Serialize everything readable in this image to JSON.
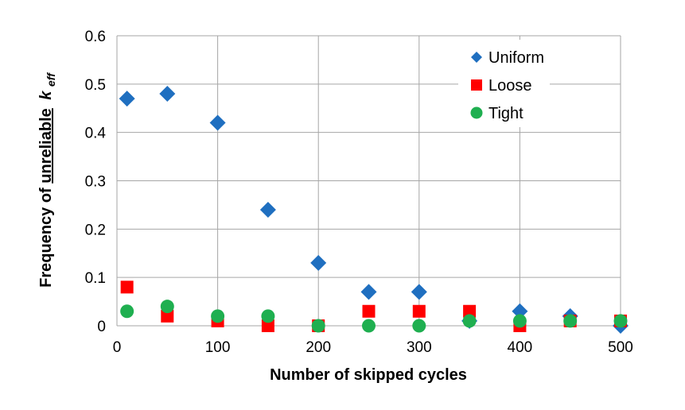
{
  "chart_data": {
    "type": "scatter",
    "xlabel": "Number of skipped cycles",
    "ylabel": {
      "prefix": "Frequency of ",
      "emphasis": "unreliable",
      "symbol": "k",
      "subscript": "eff"
    },
    "xlim": [
      0,
      500
    ],
    "ylim": [
      0,
      0.6
    ],
    "xticks": [
      "0",
      "100",
      "200",
      "300",
      "400",
      "500"
    ],
    "yticks": [
      "0",
      "0.1",
      "0.2",
      "0.3",
      "0.4",
      "0.5",
      "0.6"
    ],
    "grid": true,
    "legend_position": "top-right",
    "series": [
      {
        "name": "Uniform",
        "marker": "diamond",
        "color": "#1F6FC0",
        "x": [
          10,
          50,
          100,
          150,
          200,
          250,
          300,
          350,
          400,
          450,
          500
        ],
        "y": [
          0.47,
          0.48,
          0.42,
          0.24,
          0.13,
          0.07,
          0.07,
          0.01,
          0.03,
          0.02,
          0.0
        ]
      },
      {
        "name": "Loose",
        "marker": "square",
        "color": "#FF0000",
        "x": [
          10,
          50,
          100,
          150,
          200,
          250,
          300,
          350,
          400,
          450,
          500
        ],
        "y": [
          0.08,
          0.02,
          0.01,
          0.0,
          0.0,
          0.03,
          0.03,
          0.03,
          0.0,
          0.01,
          0.01
        ]
      },
      {
        "name": "Tight",
        "marker": "circle",
        "color": "#1FAF50",
        "x": [
          10,
          50,
          100,
          150,
          200,
          250,
          300,
          350,
          400,
          450,
          500
        ],
        "y": [
          0.03,
          0.04,
          0.02,
          0.02,
          0.0,
          0.0,
          0.0,
          0.01,
          0.01,
          0.01,
          0.01
        ]
      }
    ]
  }
}
